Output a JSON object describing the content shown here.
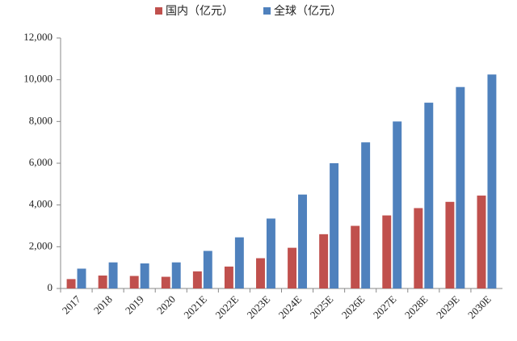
{
  "chart_data": {
    "type": "bar",
    "categories": [
      "2017",
      "2018",
      "2019",
      "2020",
      "2021E",
      "2022E",
      "2023E",
      "2024E",
      "2025E",
      "2026E",
      "2027E",
      "2028E",
      "2029E",
      "2030E"
    ],
    "series": [
      {
        "name": "国内（亿元）",
        "color": "#c0504d",
        "values": [
          450,
          620,
          600,
          560,
          820,
          1050,
          1450,
          1950,
          2600,
          3000,
          3500,
          3850,
          4150,
          4450
        ]
      },
      {
        "name": "全球（亿元）",
        "color": "#4f81bd",
        "values": [
          950,
          1250,
          1200,
          1250,
          1800,
          2450,
          3350,
          4500,
          6000,
          7000,
          8000,
          8900,
          9650,
          10250
        ]
      }
    ],
    "ylim": [
      0,
      12000
    ],
    "yticks": [
      0,
      {
        "value": 2000,
        "label": "2,000"
      },
      {
        "value": 4000,
        "label": "4,000"
      },
      {
        "value": 6000,
        "label": "6,000"
      },
      {
        "value": 8000,
        "label": "8,000"
      },
      {
        "value": 10000,
        "label": "10,000"
      },
      {
        "value": 12000,
        "label": "12,000"
      }
    ]
  }
}
